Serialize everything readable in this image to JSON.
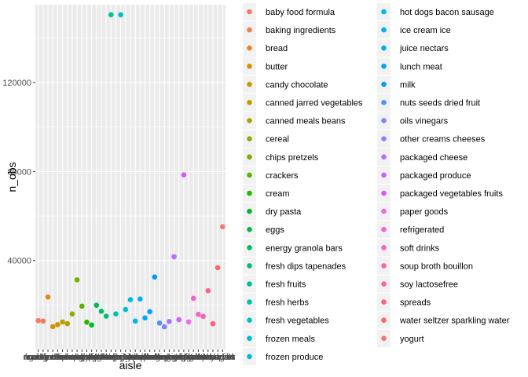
{
  "chart_data": {
    "type": "scatter",
    "xlabel": "aisle",
    "ylabel": "n_obs",
    "yticks": [
      40000,
      80000,
      120000
    ],
    "yticklabels": [
      "40000",
      "80000",
      "120000"
    ],
    "ylim": [
      0,
      155000
    ],
    "grid": true,
    "legend_position": "right",
    "categories": [
      "baby food formula",
      "baking ingredients",
      "bread",
      "butter",
      "candy chocolate",
      "canned jarred vegetables",
      "canned meals beans",
      "cereal",
      "chips pretzels",
      "crackers",
      "cream",
      "dry pasta",
      "eggs",
      "energy granola bars",
      "fresh dips tapenades",
      "fresh fruits",
      "fresh herbs",
      "fresh vegetables",
      "frozen meals",
      "frozen produce",
      "hot dogs bacon sausage",
      "ice cream ice",
      "juice nectars",
      "lunch meat",
      "milk",
      "nuts seeds dried fruit",
      "oils vinegars",
      "other creams cheeses",
      "packaged cheese",
      "packaged produce",
      "packaged vegetables fruits",
      "paper goods",
      "refrigerated",
      "soft drinks",
      "soup broth bouillon",
      "soy lactosefree",
      "spreads",
      "water seltzer sparkling water",
      "yogurt"
    ],
    "values": [
      13000,
      12800,
      23600,
      10300,
      11200,
      12400,
      11600,
      16000,
      31300,
      19500,
      12300,
      11000,
      19900,
      17200,
      15000,
      150500,
      16000,
      150500,
      18000,
      22400,
      12800,
      22700,
      14200,
      17000,
      32600,
      11900,
      10200,
      12600,
      41700,
      13400,
      78500,
      12400,
      23000,
      15800,
      14900,
      26400,
      11600,
      36800,
      55200
    ],
    "colors": [
      "#F8766D",
      "#F17D51",
      "#E7851E",
      "#DB8E00",
      "#CD9600",
      "#BD9D00",
      "#AAA300",
      "#94A900",
      "#7CAE00",
      "#5DB300",
      "#2AB600",
      "#00B92A",
      "#00BB4A",
      "#00BE65",
      "#00BF7D",
      "#00C094",
      "#00C1A9",
      "#00BFBD",
      "#00BDD0",
      "#00B9E1",
      "#00B6EB",
      "#00B0F6",
      "#00A9FF",
      "#00A2FF",
      "#0099FF",
      "#4F8FFF",
      "#7F83FF",
      "#A177FF",
      "#B86EFF",
      "#CB62FF",
      "#DB58F6",
      "#E86DE6",
      "#F165D6",
      "#F763C2",
      "#FB62AC",
      "#FF6195",
      "#FF617D",
      "#FF6565",
      "#F8766D"
    ]
  }
}
